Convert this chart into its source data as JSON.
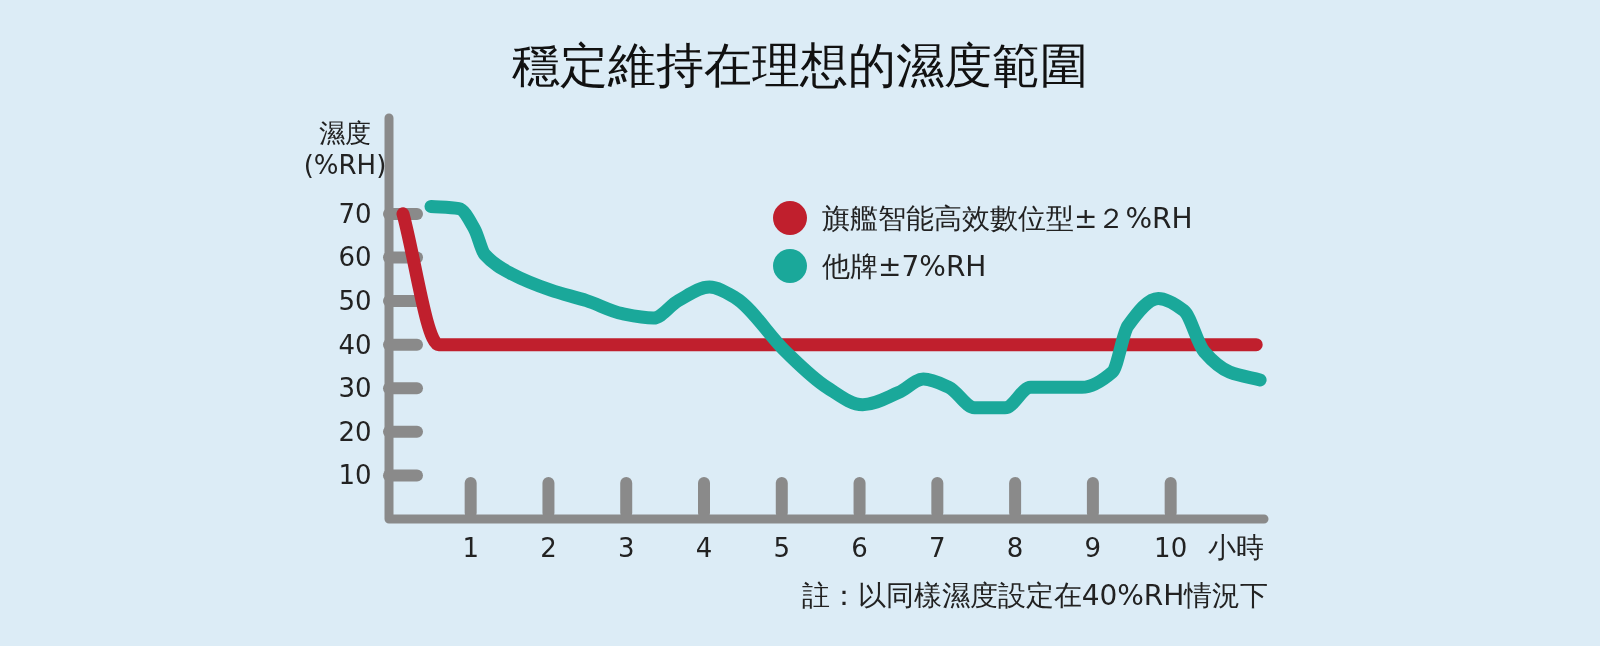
{
  "chart_data": {
    "type": "line",
    "title": "穩定維持在理想的濕度範圍",
    "ylabel": "濕度\n(%RH)",
    "xlabel": "小時",
    "annotations": [
      "註：以同樣濕度設定在40%RH情況下"
    ],
    "xlim": [
      -0.05,
      11.2
    ],
    "ylim": [
      0,
      92
    ],
    "xticks": [
      1,
      2,
      3,
      4,
      5,
      6,
      7,
      8,
      9,
      10
    ],
    "yticks": [
      10,
      20,
      30,
      40,
      50,
      60,
      70
    ],
    "legend": "top right",
    "grid": false,
    "marker": "none",
    "line_style": "solid",
    "series": [
      {
        "name": "旗艦智能高效數位型±２%RH",
        "color": "#c01f2d",
        "x": [
          0.13,
          0.59,
          11.1
        ],
        "values": [
          70,
          40,
          40
        ]
      },
      {
        "name": "他牌±7%RH",
        "color": "#1aa89a",
        "x": [
          0.49,
          0.85,
          1.05,
          1.18,
          1.51,
          2.03,
          2.49,
          2.95,
          3.35,
          3.67,
          4.07,
          4.4,
          5.05,
          5.58,
          6.04,
          6.5,
          6.82,
          7.15,
          7.48,
          7.87,
          8.2,
          8.86,
          9.25,
          9.45,
          9.84,
          10.17,
          10.43,
          10.76,
          11.15
        ],
        "values": [
          71.7,
          71.2,
          66.5,
          60.7,
          56.4,
          52.5,
          50.1,
          47.1,
          46.1,
          50.1,
          53.2,
          50.8,
          38.4,
          30.2,
          26.2,
          29,
          32.1,
          30.2,
          25.5,
          25.5,
          30.2,
          30.2,
          33.7,
          44.3,
          50.6,
          47.8,
          38.4,
          33.7,
          31.9
        ]
      }
    ]
  }
}
